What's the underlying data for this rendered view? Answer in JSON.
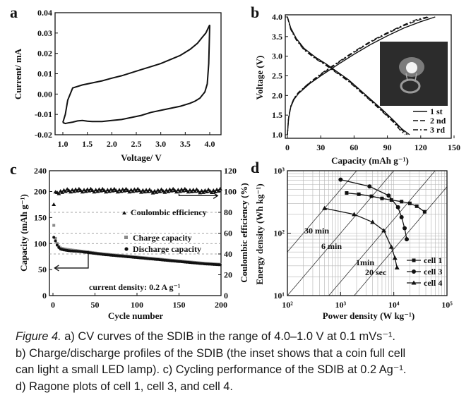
{
  "caption": {
    "label": "Figure 4.",
    "line1": "a) CV curves of the SDIB in the range of 4.0–1.0 V at 0.1 mVs⁻¹.",
    "line2": "b) Charge/discharge profiles of the SDIB (the inset shows that a coin full cell",
    "line3": "can light a small LED lamp). c) Cycling performance of the SDIB at 0.2 Ag⁻¹.",
    "line4": "d) Ragone plots of cell 1, cell 3, and cell 4."
  },
  "chart_data": [
    {
      "panel": "a",
      "type": "line",
      "xlabel": "Voltage/ V",
      "ylabel": "Current/ mA",
      "xlim": [
        1.0,
        4.0
      ],
      "ylim": [
        -0.02,
        0.04
      ],
      "xticks": [
        "1.0",
        "1.5",
        "2.0",
        "2.5",
        "3.0",
        "3.5",
        "4.0"
      ],
      "yticks": [
        "-0.02",
        "-0.01",
        "0.00",
        "0.01",
        "0.02",
        "0.03",
        "0.04"
      ],
      "series": [
        {
          "x": [
            1.0,
            1.05,
            1.1,
            1.2,
            1.4,
            1.6,
            1.8,
            2.0,
            2.2,
            2.4,
            2.6,
            2.8,
            3.0,
            3.2,
            3.4,
            3.6,
            3.75,
            3.85,
            3.92,
            3.96,
            4.0
          ],
          "y": [
            -0.014,
            -0.01,
            -0.003,
            0.003,
            0.0045,
            0.0055,
            0.0065,
            0.0078,
            0.009,
            0.0105,
            0.012,
            0.0135,
            0.015,
            0.017,
            0.019,
            0.022,
            0.025,
            0.028,
            0.03,
            0.032,
            0.034
          ]
        },
        {
          "x": [
            4.0,
            3.98,
            3.95,
            3.9,
            3.8,
            3.7,
            3.6,
            3.4,
            3.2,
            3.0,
            2.8,
            2.6,
            2.4,
            2.2,
            2.0,
            1.8,
            1.6,
            1.5,
            1.4,
            1.3,
            1.2,
            1.1,
            1.05,
            1.0
          ],
          "y": [
            0.034,
            0.015,
            0.005,
            0.001,
            -0.002,
            -0.0035,
            -0.0045,
            -0.006,
            -0.007,
            -0.008,
            -0.009,
            -0.0105,
            -0.0115,
            -0.0125,
            -0.013,
            -0.0135,
            -0.0135,
            -0.0133,
            -0.013,
            -0.0132,
            -0.0138,
            -0.0142,
            -0.0145,
            -0.014
          ]
        }
      ]
    },
    {
      "panel": "b",
      "type": "line",
      "xlabel": "Capacity (mAh g⁻¹)",
      "ylabel": "Voltage (V)",
      "xlim": [
        0,
        150
      ],
      "ylim": [
        1.0,
        4.0
      ],
      "xticks": [
        "0",
        "30",
        "60",
        "90",
        "120",
        "150"
      ],
      "yticks": [
        "1.0",
        "1.5",
        "2.0",
        "2.5",
        "3.0",
        "3.5",
        "4.0"
      ],
      "legend": [
        "1 st",
        "2 nd",
        "3 rd"
      ],
      "legend_position": "bottom-right",
      "inset": "photo of a coin full cell lighting a small LED lamp",
      "series": [
        {
          "name": "1 st",
          "charge_x": [
            0,
            1,
            3,
            6,
            10,
            20,
            30,
            45,
            60,
            75,
            90,
            105,
            120,
            133
          ],
          "charge_y": [
            1.0,
            1.4,
            1.7,
            1.9,
            2.05,
            2.3,
            2.5,
            2.78,
            3.05,
            3.3,
            3.52,
            3.72,
            3.88,
            4.0
          ],
          "discharge_x": [
            0,
            3,
            8,
            15,
            25,
            35,
            45,
            55,
            65,
            75,
            85,
            95,
            103,
            110
          ],
          "discharge_y": [
            4.0,
            3.72,
            3.45,
            3.2,
            2.98,
            2.8,
            2.6,
            2.4,
            2.15,
            1.9,
            1.65,
            1.38,
            1.15,
            1.0
          ]
        },
        {
          "name": "2 nd",
          "charge_x": [
            0,
            1,
            3,
            6,
            10,
            20,
            30,
            45,
            60,
            75,
            90,
            105,
            118,
            128
          ],
          "charge_y": [
            1.0,
            1.42,
            1.72,
            1.92,
            2.07,
            2.32,
            2.53,
            2.82,
            3.1,
            3.36,
            3.58,
            3.78,
            3.92,
            4.0
          ],
          "discharge_x": [
            0,
            3,
            8,
            15,
            25,
            35,
            45,
            55,
            65,
            75,
            85,
            95,
            103,
            108
          ],
          "discharge_y": [
            4.0,
            3.7,
            3.43,
            3.18,
            2.96,
            2.78,
            2.58,
            2.38,
            2.13,
            1.88,
            1.62,
            1.35,
            1.12,
            1.0
          ]
        },
        {
          "name": "3 rd",
          "charge_x": [
            0,
            1,
            3,
            6,
            10,
            20,
            30,
            45,
            60,
            75,
            90,
            105,
            116,
            126
          ],
          "charge_y": [
            1.0,
            1.43,
            1.73,
            1.93,
            2.08,
            2.33,
            2.55,
            2.84,
            3.12,
            3.38,
            3.6,
            3.8,
            3.93,
            4.0
          ],
          "discharge_x": [
            0,
            3,
            8,
            15,
            25,
            35,
            45,
            55,
            65,
            75,
            85,
            95,
            102,
            106
          ],
          "discharge_y": [
            4.0,
            3.68,
            3.41,
            3.16,
            2.94,
            2.76,
            2.56,
            2.36,
            2.11,
            1.86,
            1.6,
            1.33,
            1.1,
            1.0
          ]
        }
      ]
    },
    {
      "panel": "c",
      "type": "scatter",
      "xlabel": "Cycle number",
      "ylabel": "Capacity (mAh g⁻¹)",
      "y2label": "Coulombic efficiency (%)",
      "xlim": [
        0,
        200
      ],
      "ylim": [
        0,
        240
      ],
      "y2lim": [
        0,
        120
      ],
      "xticks": [
        "0",
        "50",
        "100",
        "150",
        "200"
      ],
      "yticks": [
        "0",
        "50",
        "100",
        "150",
        "200"
      ],
      "y2ticks": [
        "0",
        "20",
        "40",
        "60",
        "80",
        "100",
        "120"
      ],
      "annotations": [
        "Coulombic efficiency",
        "Charge capacity",
        "Discharge capacity",
        "current density: 0.2 A g⁻¹"
      ],
      "series": [
        {
          "name": "Coulombic efficiency",
          "axis": "right",
          "x": [
            1,
            2,
            3,
            5,
            10,
            20,
            40,
            60,
            80,
            100,
            120,
            140,
            160,
            180,
            200
          ],
          "y": [
            88,
            95,
            98,
            99,
            100,
            101,
            101,
            101,
            101,
            101,
            100,
            101,
            101,
            100,
            101
          ]
        },
        {
          "name": "Charge capacity",
          "axis": "left",
          "x": [
            1,
            2,
            3,
            5,
            8,
            12,
            20,
            30,
            40,
            60,
            80,
            100,
            120,
            140,
            160,
            180,
            200
          ],
          "y": [
            135,
            118,
            110,
            100,
            92,
            90,
            88,
            86,
            84,
            80,
            77,
            74,
            71,
            68,
            65,
            62,
            60
          ]
        },
        {
          "name": "Discharge capacity",
          "axis": "left",
          "x": [
            1,
            2,
            3,
            5,
            8,
            12,
            20,
            30,
            40,
            60,
            80,
            100,
            120,
            140,
            160,
            180,
            200
          ],
          "y": [
            112,
            110,
            105,
            97,
            90,
            88,
            86,
            85,
            83,
            79,
            76,
            73,
            70,
            67,
            64,
            61,
            59
          ]
        }
      ]
    },
    {
      "panel": "d",
      "type": "line",
      "xlabel": "Power density (W kg⁻¹)",
      "ylabel": "Energy density (Wh kg⁻¹)",
      "xscale": "log",
      "yscale": "log",
      "xlim": [
        100,
        100000
      ],
      "ylim": [
        10,
        1000
      ],
      "xticks": [
        "10²",
        "10³",
        "10⁴",
        "10⁵"
      ],
      "yticks": [
        "10¹",
        "10²",
        "10³"
      ],
      "time_labels": [
        "30 min",
        "6 min",
        "1min",
        "20 sec"
      ],
      "legend": [
        "cell 1",
        "cell 3",
        "cell 4"
      ],
      "legend_position": "bottom-right",
      "series": [
        {
          "name": "cell 1",
          "marker": "square",
          "x": [
            1300,
            2200,
            3800,
            6000,
            9000,
            14000,
            20000,
            27000,
            38000
          ],
          "y": [
            440,
            420,
            390,
            360,
            340,
            320,
            300,
            270,
            220
          ]
        },
        {
          "name": "cell 3",
          "marker": "circle",
          "x": [
            1000,
            3500,
            8000,
            12000,
            14000,
            16000,
            17500
          ],
          "y": [
            720,
            560,
            400,
            260,
            180,
            120,
            80
          ]
        },
        {
          "name": "cell 4",
          "marker": "triangle",
          "x": [
            500,
            1800,
            4000,
            6500,
            9000,
            10500,
            11500
          ],
          "y": [
            250,
            200,
            150,
            110,
            60,
            40,
            28
          ]
        }
      ]
    }
  ],
  "panel_labels": [
    "a",
    "b",
    "c",
    "d"
  ],
  "tick_text": {
    "a_x": [
      "1.0",
      "1.5",
      "2.0",
      "2.5",
      "3.0",
      "3.5",
      "4.0"
    ],
    "a_y": [
      "0.04",
      "0.03",
      "0.02",
      "0.01",
      "0.00",
      "-0.01",
      "-0.02"
    ],
    "b_x": [
      "0",
      "30",
      "60",
      "90",
      "120",
      "150"
    ],
    "b_y": [
      "4.0",
      "3.5",
      "3.0",
      "2.5",
      "2.0",
      "1.5",
      "1.0"
    ],
    "c_x": [
      "0",
      "50",
      "100",
      "150",
      "200"
    ],
    "c_y": [
      "240",
      "200",
      "150",
      "100",
      "50",
      "0"
    ],
    "c_y2": [
      "120",
      "100",
      "80",
      "60",
      "40",
      "20",
      "0"
    ],
    "d_x": [
      "10²",
      "10³",
      "10⁴",
      "10⁵"
    ],
    "d_y": [
      "10³",
      "10²",
      "10¹"
    ]
  }
}
